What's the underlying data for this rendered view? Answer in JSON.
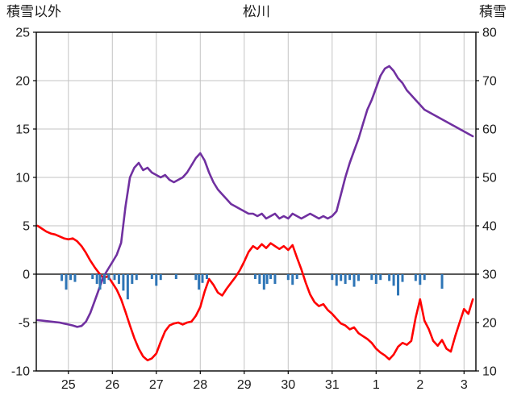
{
  "header": {
    "left_axis_title": "積雪以外",
    "title": "松川",
    "right_axis_title": "積雪"
  },
  "chart_data": {
    "type": "line",
    "title": "松川",
    "grid": true,
    "legend": "none",
    "left_axis": {
      "title": "積雪以外",
      "min": -10,
      "max": 25,
      "tick_step": 5,
      "ticks": [
        -10,
        -5,
        0,
        5,
        10,
        15,
        20,
        25
      ]
    },
    "right_axis": {
      "title": "積雪",
      "min": 10,
      "max": 80,
      "tick_step": 10,
      "ticks": [
        10,
        20,
        30,
        40,
        50,
        60,
        70,
        80
      ]
    },
    "x_axis": {
      "min": 24.27,
      "max": 34.27,
      "tick_positions": [
        25,
        26,
        27,
        28,
        29,
        30,
        31,
        32,
        33,
        34
      ],
      "tick_labels": [
        "25",
        "26",
        "27",
        "28",
        "29",
        "30",
        "31",
        "1",
        "2",
        "3"
      ]
    },
    "zero_line_value": 0,
    "colors": {
      "red_line": "#ff0000",
      "purple_line": "#7030a0",
      "blue_bars": "#2e75b6",
      "grid": "#c3c3c3",
      "zero_line": "#595959",
      "axis_frame": "#000000",
      "text": "#1a1a1a"
    },
    "sampling": {
      "x_start": 24.3,
      "x_step": 0.1
    },
    "series": [
      {
        "name": "red-line-left-axis",
        "kind": "line",
        "axis": "left",
        "color": "#ff0000",
        "values": [
          5.0,
          4.7,
          4.4,
          4.2,
          4.1,
          3.9,
          3.7,
          3.6,
          3.7,
          3.4,
          2.9,
          2.2,
          1.4,
          0.7,
          0.1,
          -0.4,
          -0.2,
          -0.9,
          -1.6,
          -2.6,
          -3.9,
          -5.3,
          -6.6,
          -7.7,
          -8.5,
          -8.9,
          -8.7,
          -8.2,
          -7.0,
          -5.9,
          -5.3,
          -5.1,
          -5.0,
          -5.2,
          -5.0,
          -4.9,
          -4.3,
          -3.4,
          -1.8,
          -0.5,
          -1.1,
          -1.9,
          -2.2,
          -1.5,
          -0.9,
          -0.3,
          0.4,
          1.3,
          2.3,
          2.9,
          2.6,
          3.1,
          2.7,
          3.2,
          2.9,
          2.6,
          2.9,
          2.5,
          3.0,
          1.7,
          0.5,
          -0.9,
          -2.1,
          -2.9,
          -3.3,
          -3.1,
          -3.7,
          -4.1,
          -4.6,
          -5.1,
          -5.3,
          -5.7,
          -5.5,
          -6.1,
          -6.4,
          -6.7,
          -7.1,
          -7.7,
          -8.1,
          -8.4,
          -8.8,
          -8.3,
          -7.5,
          -7.1,
          -7.3,
          -6.9,
          -4.5,
          -2.6,
          -4.8,
          -5.7,
          -6.9,
          -7.4,
          -6.8,
          -7.7,
          -8.0,
          -6.4,
          -5.0,
          -3.6,
          -4.1,
          -2.6
        ]
      },
      {
        "name": "purple-line-right-axis",
        "kind": "line",
        "axis": "right",
        "color": "#7030a0",
        "values": [
          20.5,
          20.4,
          20.3,
          20.2,
          20.1,
          20.0,
          19.8,
          19.6,
          19.4,
          19.1,
          19.3,
          20.2,
          22.0,
          24.5,
          27.0,
          29.5,
          31.0,
          32.5,
          34.0,
          36.5,
          44.0,
          50.0,
          52.0,
          53.0,
          51.5,
          52.0,
          51.0,
          50.5,
          50.0,
          50.5,
          49.5,
          49.0,
          49.5,
          50.0,
          51.0,
          52.5,
          54.0,
          55.0,
          53.5,
          51.0,
          49.0,
          47.5,
          46.5,
          45.5,
          44.5,
          44.0,
          43.5,
          43.0,
          42.5,
          42.5,
          42.0,
          42.5,
          41.5,
          42.0,
          42.5,
          41.5,
          42.0,
          41.5,
          42.5,
          42.0,
          41.5,
          42.0,
          42.5,
          42.0,
          41.5,
          42.0,
          41.5,
          42.0,
          43.0,
          46.5,
          50.0,
          53.0,
          55.5,
          58.0,
          61.0,
          64.0,
          66.0,
          68.5,
          71.0,
          72.5,
          73.0,
          72.0,
          70.5,
          69.5,
          68.0,
          67.0,
          66.0,
          65.0,
          64.0,
          63.5,
          63.0,
          62.5,
          62.0,
          61.5,
          61.0,
          60.5,
          60.0,
          59.5,
          59.0,
          58.5
        ]
      },
      {
        "name": "blue-bars-left-axis",
        "kind": "bar",
        "axis": "left",
        "color": "#2e75b6",
        "points": [
          [
            24.85,
            -0.7
          ],
          [
            24.95,
            -1.6
          ],
          [
            25.05,
            -0.6
          ],
          [
            25.15,
            -0.8
          ],
          [
            25.55,
            -0.5
          ],
          [
            25.65,
            -1.0
          ],
          [
            25.72,
            -1.6
          ],
          [
            25.82,
            -1.0
          ],
          [
            25.92,
            -0.6
          ],
          [
            26.05,
            -0.6
          ],
          [
            26.15,
            -1.0
          ],
          [
            26.25,
            -1.7
          ],
          [
            26.35,
            -2.6
          ],
          [
            26.45,
            -1.0
          ],
          [
            26.55,
            -0.6
          ],
          [
            26.9,
            -0.5
          ],
          [
            27.0,
            -1.2
          ],
          [
            27.1,
            -0.6
          ],
          [
            27.45,
            -0.5
          ],
          [
            27.9,
            -0.6
          ],
          [
            27.97,
            -1.6
          ],
          [
            28.05,
            -0.9
          ],
          [
            28.15,
            -0.5
          ],
          [
            29.25,
            -0.5
          ],
          [
            29.35,
            -1.0
          ],
          [
            29.45,
            -1.6
          ],
          [
            29.52,
            -1.0
          ],
          [
            29.6,
            -0.5
          ],
          [
            29.7,
            -1.0
          ],
          [
            30.0,
            -0.6
          ],
          [
            30.1,
            -1.1
          ],
          [
            30.2,
            -0.5
          ],
          [
            31.0,
            -0.6
          ],
          [
            31.1,
            -1.2
          ],
          [
            31.2,
            -0.7
          ],
          [
            31.3,
            -1.0
          ],
          [
            31.4,
            -0.6
          ],
          [
            31.5,
            -1.3
          ],
          [
            31.6,
            -0.7
          ],
          [
            31.9,
            -0.6
          ],
          [
            32.0,
            -1.0
          ],
          [
            32.1,
            -0.6
          ],
          [
            32.3,
            -0.7
          ],
          [
            32.4,
            -1.2
          ],
          [
            32.5,
            -2.2
          ],
          [
            32.6,
            -0.8
          ],
          [
            32.9,
            -0.7
          ],
          [
            33.0,
            -1.1
          ],
          [
            33.1,
            -0.6
          ],
          [
            33.5,
            -1.5
          ]
        ]
      }
    ]
  }
}
